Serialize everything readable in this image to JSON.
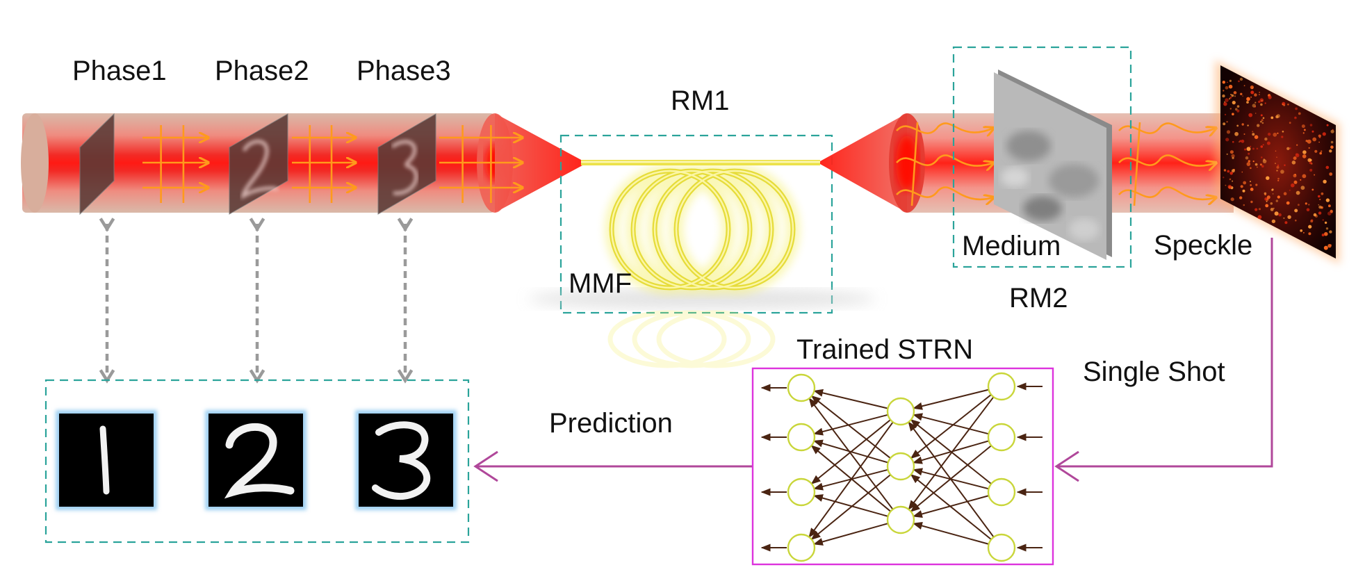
{
  "phases": [
    {
      "label": "Phase1",
      "digit": "1"
    },
    {
      "label": "Phase2",
      "digit": "2"
    },
    {
      "label": "Phase3",
      "digit": "3"
    }
  ],
  "fiber": {
    "box_label": "RM1",
    "fiber_label": "MMF"
  },
  "medium": {
    "box_label": "RM2",
    "medium_label": "Medium"
  },
  "speckle_label": "Speckle",
  "single_shot_label": "Single Shot",
  "network_label": "Trained STRN",
  "prediction_label": "Prediction",
  "predictions": [
    "1",
    "2",
    "3"
  ],
  "colors": {
    "beam": "#e8262b",
    "fiber": "#f4ee62",
    "dashed_box": "#2aa39a",
    "arrow_path": "#b0479a",
    "network_box": "#dd33dd",
    "neuron": "#c9d63a",
    "net_arrow": "#4a2412",
    "grid_arrow": "#ff9a1c",
    "link_arrow": "#9a9a9a"
  }
}
